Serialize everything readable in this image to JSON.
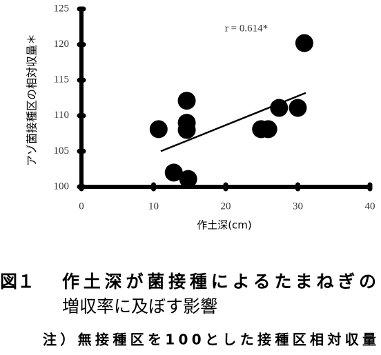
{
  "chart_data": {
    "type": "scatter",
    "annotation": "r = 0.614*",
    "xlabel": "作土深(cm)",
    "ylabel": "アゾ菌接種区の相対収量＊",
    "xlim": [
      0,
      40
    ],
    "xticks": [
      0,
      10,
      20,
      30,
      40
    ],
    "ylim": [
      100,
      125
    ],
    "yticks": [
      100,
      105,
      110,
      115,
      120,
      125
    ],
    "color": "#000000",
    "x": [
      10.7,
      12.8,
      14.6,
      14.6,
      14.6,
      14.8,
      24.9,
      25.9,
      27.4,
      30.0,
      30.9
    ],
    "y": [
      108.1,
      102.0,
      112.1,
      109.0,
      108.0,
      101.1,
      108.1,
      108.1,
      111.1,
      111.1,
      120.2
    ],
    "trendline": {
      "x": [
        11.0,
        31.1
      ],
      "y": [
        105.0,
        113.2
      ]
    }
  },
  "caption": {
    "figure_label": "図１",
    "title_line1": "作土深が菌接種によるたまねぎの",
    "title_line2": "増収率に及ぼす影響",
    "note": "注）無接種区を100とした接種区相対収量"
  }
}
